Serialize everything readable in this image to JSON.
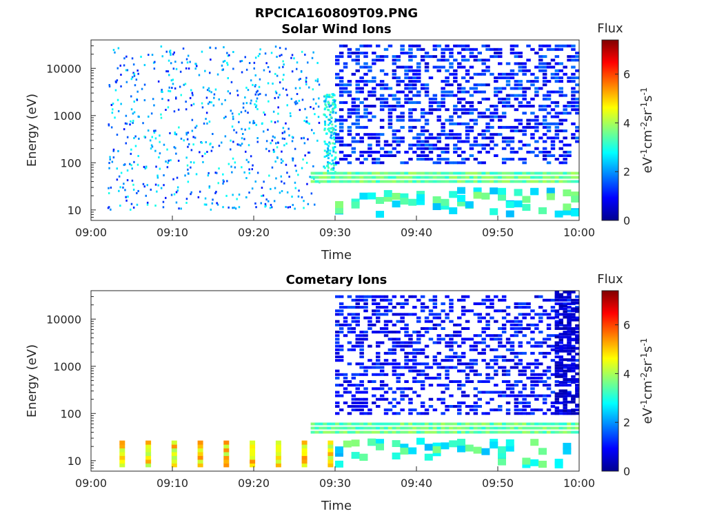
{
  "figure_title": "RPCICA160809T09.PNG",
  "colors": {
    "colormap": [
      "#00008f",
      "#0000ff",
      "#0080ff",
      "#00ffff",
      "#80ff80",
      "#ffff00",
      "#ff8000",
      "#ff0000",
      "#800000"
    ],
    "axis": "#262626"
  },
  "chart_data": [
    {
      "type": "heatmap",
      "title": "Solar Wind Ions",
      "xlabel": "Time",
      "ylabel": "Energy (eV)",
      "x_ticks": [
        "09:00",
        "09:10",
        "09:20",
        "09:30",
        "09:40",
        "09:50",
        "10:00"
      ],
      "x_range_minutes": [
        0,
        60
      ],
      "y_scale": "log",
      "y_ticks": [
        "10",
        "100",
        "1000",
        "10000"
      ],
      "y_tick_values": [
        10,
        100,
        1000,
        10000
      ],
      "ylim": [
        6,
        40000
      ],
      "colorbar": {
        "label": "Flux",
        "units": "eV-1cm-2sr-1s-1",
        "ticks": [
          "0",
          "2",
          "4",
          "6"
        ],
        "tick_values": [
          0,
          2,
          4,
          6
        ],
        "range": [
          0,
          7.4
        ]
      },
      "features": [
        {
          "note": "sparse background counts",
          "minutes": [
            2,
            28
          ],
          "energy_eV": [
            10,
            30000
          ],
          "flux": [
            1,
            3
          ]
        },
        {
          "note": "burst",
          "minutes": [
            28.5,
            30
          ],
          "energy_eV": [
            60,
            3000
          ],
          "flux": [
            2,
            3.5
          ]
        },
        {
          "note": "low-energy band",
          "minutes": [
            27,
            60
          ],
          "energy_eV": [
            40,
            60
          ],
          "flux": [
            3,
            4
          ]
        },
        {
          "note": "dense high-energy region",
          "minutes": [
            30,
            60
          ],
          "energy_eV": [
            100,
            30000
          ],
          "flux": [
            0.5,
            1.8
          ]
        }
      ]
    },
    {
      "type": "heatmap",
      "title": "Cometary Ions",
      "xlabel": "Time",
      "ylabel": "Energy (eV)",
      "x_ticks": [
        "09:00",
        "09:10",
        "09:20",
        "09:30",
        "09:40",
        "09:50",
        "10:00"
      ],
      "x_range_minutes": [
        0,
        60
      ],
      "y_scale": "log",
      "y_ticks": [
        "10",
        "100",
        "1000",
        "10000"
      ],
      "y_tick_values": [
        10,
        100,
        1000,
        10000
      ],
      "ylim": [
        6,
        40000
      ],
      "colorbar": {
        "label": "Flux",
        "units": "eV-1cm-2sr-1s-1",
        "ticks": [
          "0",
          "2",
          "4",
          "6"
        ],
        "tick_values": [
          0,
          2,
          4,
          6
        ],
        "range": [
          0,
          7.4
        ]
      },
      "features": [
        {
          "note": "periodic bursts",
          "minutes": [
            3.5,
            29.5
          ],
          "period_minutes": 3.2,
          "energy_eV": [
            8,
            25
          ],
          "flux": [
            4,
            5.5
          ]
        },
        {
          "note": "low-energy band",
          "minutes": [
            27,
            60
          ],
          "energy_eV": [
            40,
            60
          ],
          "flux": [
            3,
            4
          ]
        },
        {
          "note": "dense high-energy region",
          "minutes": [
            30,
            60
          ],
          "energy_eV": [
            100,
            30000
          ],
          "flux": [
            0.5,
            1.5
          ]
        },
        {
          "note": "high-energy column",
          "minutes": [
            57,
            60
          ],
          "energy_eV": [
            100,
            40000
          ],
          "flux": [
            0.2,
            0.8
          ]
        }
      ]
    }
  ]
}
